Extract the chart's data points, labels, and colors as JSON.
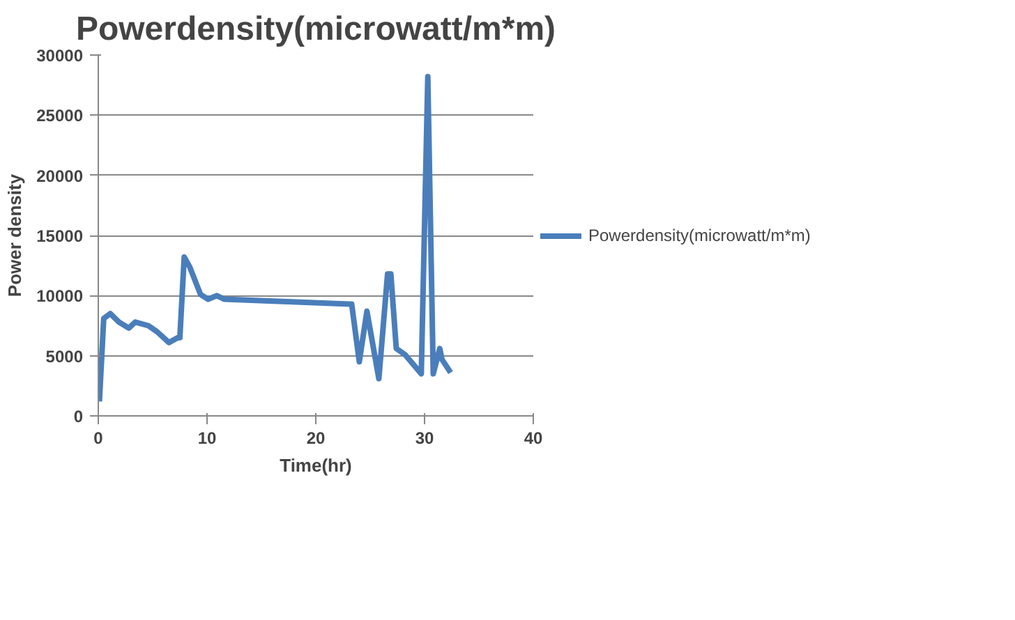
{
  "chart_data": {
    "type": "line",
    "title": "Powerdensity(microwatt/m*m)",
    "xlabel": "Time(hr)",
    "ylabel": "Power density",
    "xlim": [
      0,
      40
    ],
    "xticks": [
      0,
      10,
      20,
      30,
      40
    ],
    "ylim": [
      0,
      30000
    ],
    "yticks": [
      0,
      5000,
      10000,
      15000,
      20000,
      25000,
      30000
    ],
    "grid": "y",
    "legend": "right",
    "marker": "none",
    "line_style": "solid",
    "series": [
      {
        "name": "Powerdensity(microwatt/m*m)",
        "color": "#4a7ebb",
        "x": [
          0.1,
          0.5,
          1.1,
          1.9,
          2.8,
          3.4,
          4.6,
          5.4,
          6.5,
          7.3,
          7.5,
          7.9,
          8.4,
          9.4,
          10.1,
          10.9,
          11.6,
          23.1,
          23.3,
          24.0,
          24.7,
          25.8,
          26.6,
          26.9,
          27.4,
          28.2,
          29.7,
          30.3,
          30.8,
          31.4,
          31.6,
          32.4
        ],
        "values": [
          1200,
          8100,
          8500,
          7800,
          7300,
          7800,
          7500,
          7000,
          6100,
          6500,
          6500,
          13200,
          12400,
          10100,
          9700,
          10000,
          9700,
          9300,
          9300,
          4500,
          8700,
          3100,
          11800,
          11800,
          5600,
          5100,
          3500,
          28200,
          3500,
          5600,
          4700,
          3600
        ]
      }
    ]
  }
}
